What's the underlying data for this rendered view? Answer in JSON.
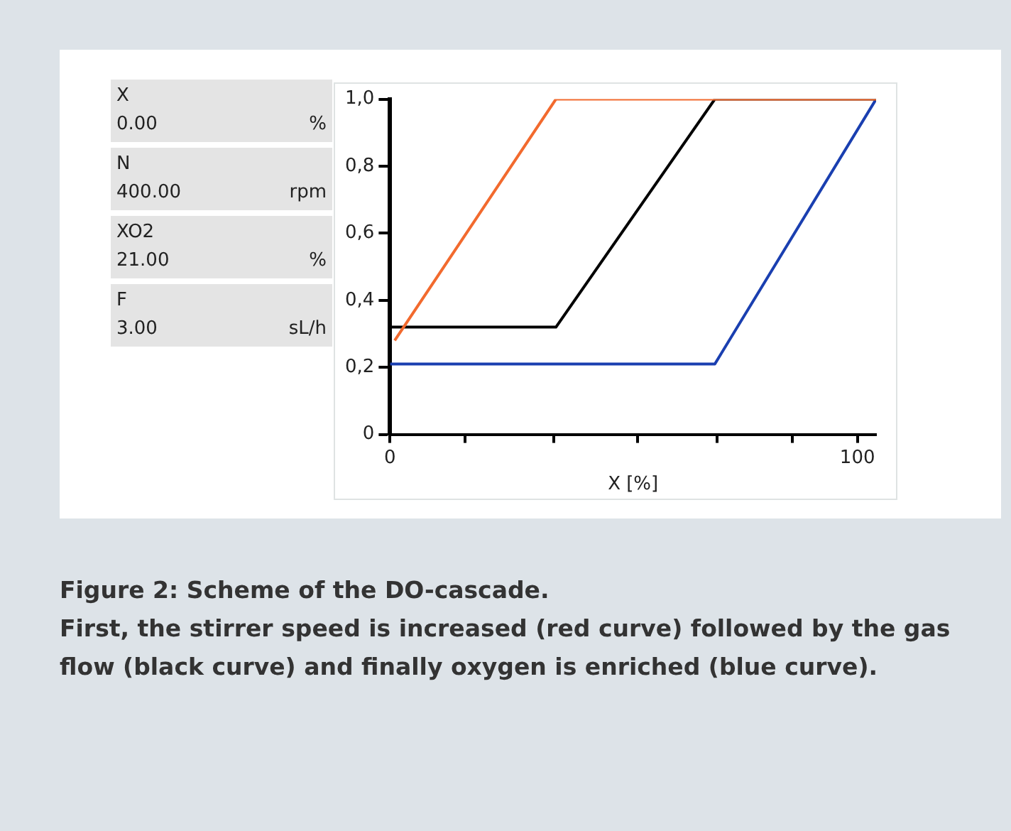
{
  "chart_data": [
    {
      "type": "other",
      "annotations": [
        "X",
        "0.00",
        "%",
        "N",
        "400.00",
        "rpm",
        "XO2",
        "21.00",
        "%",
        "F",
        "3.00",
        "sL/h"
      ]
    },
    {
      "type": "line",
      "xlabel": "X [%]",
      "xlim": [
        0,
        104
      ],
      "xticks": [
        0,
        {
          "value": 16,
          "label": null
        },
        {
          "value": 35,
          "label": null
        },
        {
          "value": 53,
          "label": null
        },
        {
          "value": 70,
          "label": null
        },
        {
          "value": 86,
          "label": null
        },
        100
      ],
      "ylim": [
        0,
        1
      ],
      "yticks": [
        0,
        {
          "value": 0.2,
          "label": "0,2"
        },
        {
          "value": 0.4,
          "label": "0,4"
        },
        {
          "value": 0.6,
          "label": "0,6"
        },
        {
          "value": 0.8,
          "label": "0,8"
        },
        {
          "value": 1,
          "label": "1,0"
        }
      ],
      "grid": false,
      "legend": false,
      "marker": "none",
      "line_style": "solid",
      "series": [
        {
          "color": "#f26a2e",
          "x": [
            1,
            35.5,
            104
          ],
          "values": [
            0.28,
            1,
            1
          ]
        },
        {
          "color": "#000000",
          "x": [
            0,
            35.5,
            69.5,
            104
          ],
          "values": [
            0.32,
            0.32,
            1,
            1
          ]
        },
        {
          "color": "#1a3fb0",
          "x": [
            0,
            69.5,
            104
          ],
          "values": [
            0.21,
            0.21,
            1
          ]
        }
      ],
      "annotations": [
        "Figure 2: Scheme of the DO-cascade.",
        "First, the stirrer speed is increased (red curve) followed by the gas flow (black curve) and finally oxygen is enriched (blue curve)."
      ]
    }
  ]
}
